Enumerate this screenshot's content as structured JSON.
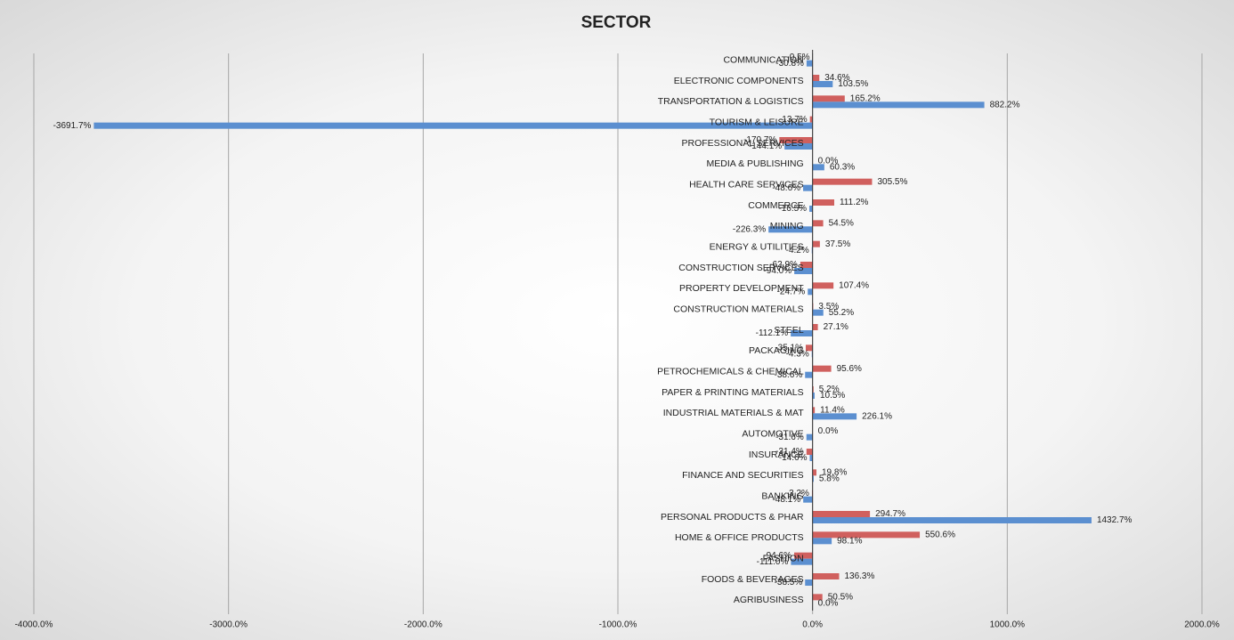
{
  "chart_data": {
    "type": "hbar",
    "title": "SECTOR",
    "categories": [
      "COMMUNICATION",
      "ELECTRONIC COMPONENTS",
      "TRANSPORTATION & LOGISTICS",
      "TOURISM & LEISURE",
      "PROFESSIONAL SERVICES",
      "MEDIA & PUBLISHING",
      "HEALTH CARE SERVICES",
      "COMMERCE",
      "MINING",
      "ENERGY & UTILITIES",
      "CONSTRUCTION SERVICES",
      "PROPERTY DEVELOPMENT",
      "CONSTRUCTION MATERIALS",
      "STEEL",
      "PACKAGING",
      "PETROCHEMICALS & CHEMICAL",
      "PAPER & PRINTING MATERIALS",
      "INDUSTRIAL MATERIALS & MAT",
      "AUTOMOTIVE",
      "INSURANCE",
      "FINANCE AND SECURITIES",
      "BANKING",
      "PERSONAL PRODUCTS & PHAR",
      "HOME & OFFICE PRODUCTS",
      "FASHION",
      "FOODS & BEVERAGES",
      "AGRIBUSINESS"
    ],
    "series": [
      {
        "color": "#d0605e",
        "values": [
          -0.5,
          34.6,
          165.2,
          -13.7,
          -170.7,
          0.0,
          305.5,
          111.2,
          54.5,
          37.5,
          -62.9,
          107.4,
          3.5,
          27.1,
          -35.1,
          95.6,
          5.2,
          11.4,
          0.0,
          -31.4,
          19.8,
          -3.2,
          294.7,
          550.6,
          -94.6,
          136.3,
          50.5
        ],
        "value_labels": [
          "-0.5%",
          "34.6%",
          "165.2%",
          "-13.7%",
          "-170.7%",
          "0.0%",
          "305.5%",
          "111.2%",
          "54.5%",
          "37.5%",
          "-62.9%",
          "107.4%",
          "3.5%",
          "27.1%",
          "-35.1%",
          "95.6%",
          "5.2%",
          "11.4%",
          "0.0%",
          "-31.4%",
          "19.8%",
          "-3.2%",
          "294.7%",
          "550.6%",
          "-94.6%",
          "136.3%",
          "50.5%"
        ]
      },
      {
        "color": "#5b8fd0",
        "values": [
          -30.8,
          103.5,
          882.2,
          -3691.7,
          -144.1,
          60.3,
          -48.6,
          -16.5,
          -226.3,
          -4.2,
          -94.0,
          -24.7,
          55.2,
          -112.1,
          -4.3,
          -38.6,
          10.5,
          226.1,
          -31.6,
          -14.6,
          5.8,
          -48.1,
          1432.7,
          98.1,
          -111.0,
          -38.5,
          0.0
        ],
        "value_labels": [
          "-30.8%",
          "103.5%",
          "882.2%",
          "-3691.7%",
          "-144.1%",
          "60.3%",
          "-48.6%",
          "-16.5%",
          "-226.3%",
          "-4.2%",
          "-94.0%",
          "-24.7%",
          "55.2%",
          "-112.1%",
          "-4.3%",
          "-38.6%",
          "10.5%",
          "226.1%",
          "-31.6%",
          "-14.6%",
          "5.8%",
          "-48.1%",
          "1432.7%",
          "98.1%",
          "-111.0%",
          "-38.5%",
          "0.0%"
        ]
      }
    ],
    "xlim": [
      -4000,
      2000
    ],
    "xticks": [
      {
        "value": -4000,
        "label": "-4000.0%"
      },
      {
        "value": -3000,
        "label": "-3000.0%"
      },
      {
        "value": -2000,
        "label": "-2000.0%"
      },
      {
        "value": -1000,
        "label": "-1000.0%"
      },
      {
        "value": 0,
        "label": "0.0%"
      },
      {
        "value": 1000,
        "label": "1000.0%"
      },
      {
        "value": 2000,
        "label": "2000.0%"
      }
    ],
    "grid": true
  }
}
